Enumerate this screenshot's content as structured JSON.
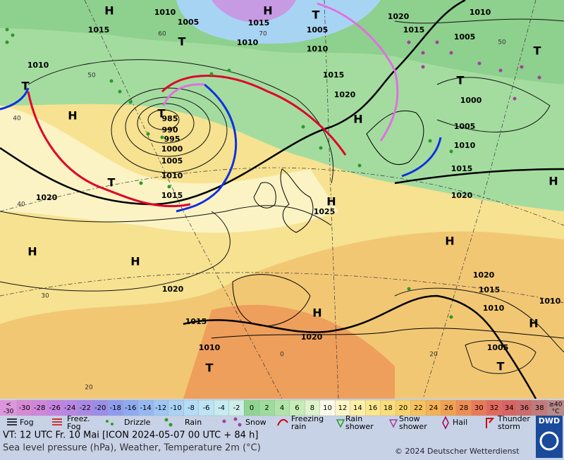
{
  "map": {
    "pressure_labels": [
      "1010",
      "1015",
      "1005",
      "1010",
      "1015",
      "1010",
      "1005",
      "1010",
      "1015",
      "1020",
      "1020",
      "1015",
      "1010",
      "1005",
      "1000",
      "1005",
      "1010",
      "1015",
      "1020",
      "985",
      "990",
      "995",
      "1000",
      "1005",
      "1010",
      "1015",
      "1020",
      "1025",
      "1020",
      "1015",
      "1010",
      "1020",
      "1020",
      "1015",
      "1010",
      "1010",
      "1005"
    ],
    "pressure_centers": [
      "H",
      "H",
      "T",
      "T",
      "H",
      "T",
      "T",
      "T",
      "H",
      "H",
      "H",
      "H",
      "H",
      "H",
      "H",
      "T",
      "T",
      "T",
      "T",
      "H"
    ],
    "grid_labels": [
      "40",
      "50",
      "60",
      "70",
      "50",
      "40",
      "30",
      "20",
      "0",
      "20"
    ]
  },
  "color_scale": {
    "lowest": [
      "<",
      "-30"
    ],
    "cells": [
      {
        "label": -30,
        "color": "#d68ad6"
      },
      {
        "label": -28,
        "color": "#cf86db"
      },
      {
        "label": -26,
        "color": "#c584df"
      },
      {
        "label": -24,
        "color": "#b986e3"
      },
      {
        "label": -22,
        "color": "#aa88e6"
      },
      {
        "label": -20,
        "color": "#9a8ee9"
      },
      {
        "label": -18,
        "color": "#8f9cee"
      },
      {
        "label": -16,
        "color": "#8eaaf0"
      },
      {
        "label": -14,
        "color": "#95b8f2"
      },
      {
        "label": -12,
        "color": "#9fc6f4"
      },
      {
        "label": -10,
        "color": "#a9d2f5"
      },
      {
        "label": -8,
        "color": "#b3dcf6"
      },
      {
        "label": -6,
        "color": "#bde4f4"
      },
      {
        "label": -4,
        "color": "#c6ebf1"
      },
      {
        "label": -2,
        "color": "#cdeee9"
      },
      {
        "label": 0,
        "color": "#8fd48f"
      },
      {
        "label": 2,
        "color": "#9ddc9b"
      },
      {
        "label": 4,
        "color": "#b0e4a8"
      },
      {
        "label": 6,
        "color": "#c6ecb8"
      },
      {
        "label": 8,
        "color": "#dcf3cb"
      },
      {
        "label": 10,
        "color": "#fbfbeb"
      },
      {
        "label": 12,
        "color": "#fdf6c6"
      },
      {
        "label": 14,
        "color": "#fdefa6"
      },
      {
        "label": 16,
        "color": "#fbe78e"
      },
      {
        "label": 18,
        "color": "#f9de7a"
      },
      {
        "label": 20,
        "color": "#f7d26a"
      },
      {
        "label": 22,
        "color": "#f5c25e"
      },
      {
        "label": 24,
        "color": "#f3b256"
      },
      {
        "label": 26,
        "color": "#f1a052"
      },
      {
        "label": 28,
        "color": "#ee8e54"
      },
      {
        "label": 30,
        "color": "#e97a58"
      },
      {
        "label": 32,
        "color": "#e2685c"
      },
      {
        "label": 34,
        "color": "#d86462"
      },
      {
        "label": 36,
        "color": "#cc6c6c"
      },
      {
        "label": 38,
        "color": "#c27a7a"
      }
    ],
    "highest": [
      "≥40",
      "°C"
    ]
  },
  "legend": [
    {
      "lines": [
        "Fog"
      ]
    },
    {
      "lines": [
        "Freez.",
        "Fog"
      ]
    },
    {
      "lines": [
        "Drizzle"
      ]
    },
    {
      "lines": [
        "Rain"
      ]
    },
    {
      "lines": [
        "Snow"
      ]
    },
    {
      "lines": [
        "Freezing",
        "rain"
      ]
    },
    {
      "lines": [
        "Rain",
        "shower"
      ]
    },
    {
      "lines": [
        "Snow",
        "shower"
      ]
    },
    {
      "lines": [
        "Hail"
      ]
    },
    {
      "lines": [
        "Thunder",
        "storm"
      ]
    }
  ],
  "footer": {
    "valid_time": "VT: 12 UTC Fr.  10 Mai [ICON 2024-05-07  00 UTC + 84 h]",
    "description": "Sea level pressure (hPa), Weather, Temperature 2m (°C)",
    "copyright": "© 2024 Deutscher Wetterdienst",
    "logo": "DWD"
  }
}
